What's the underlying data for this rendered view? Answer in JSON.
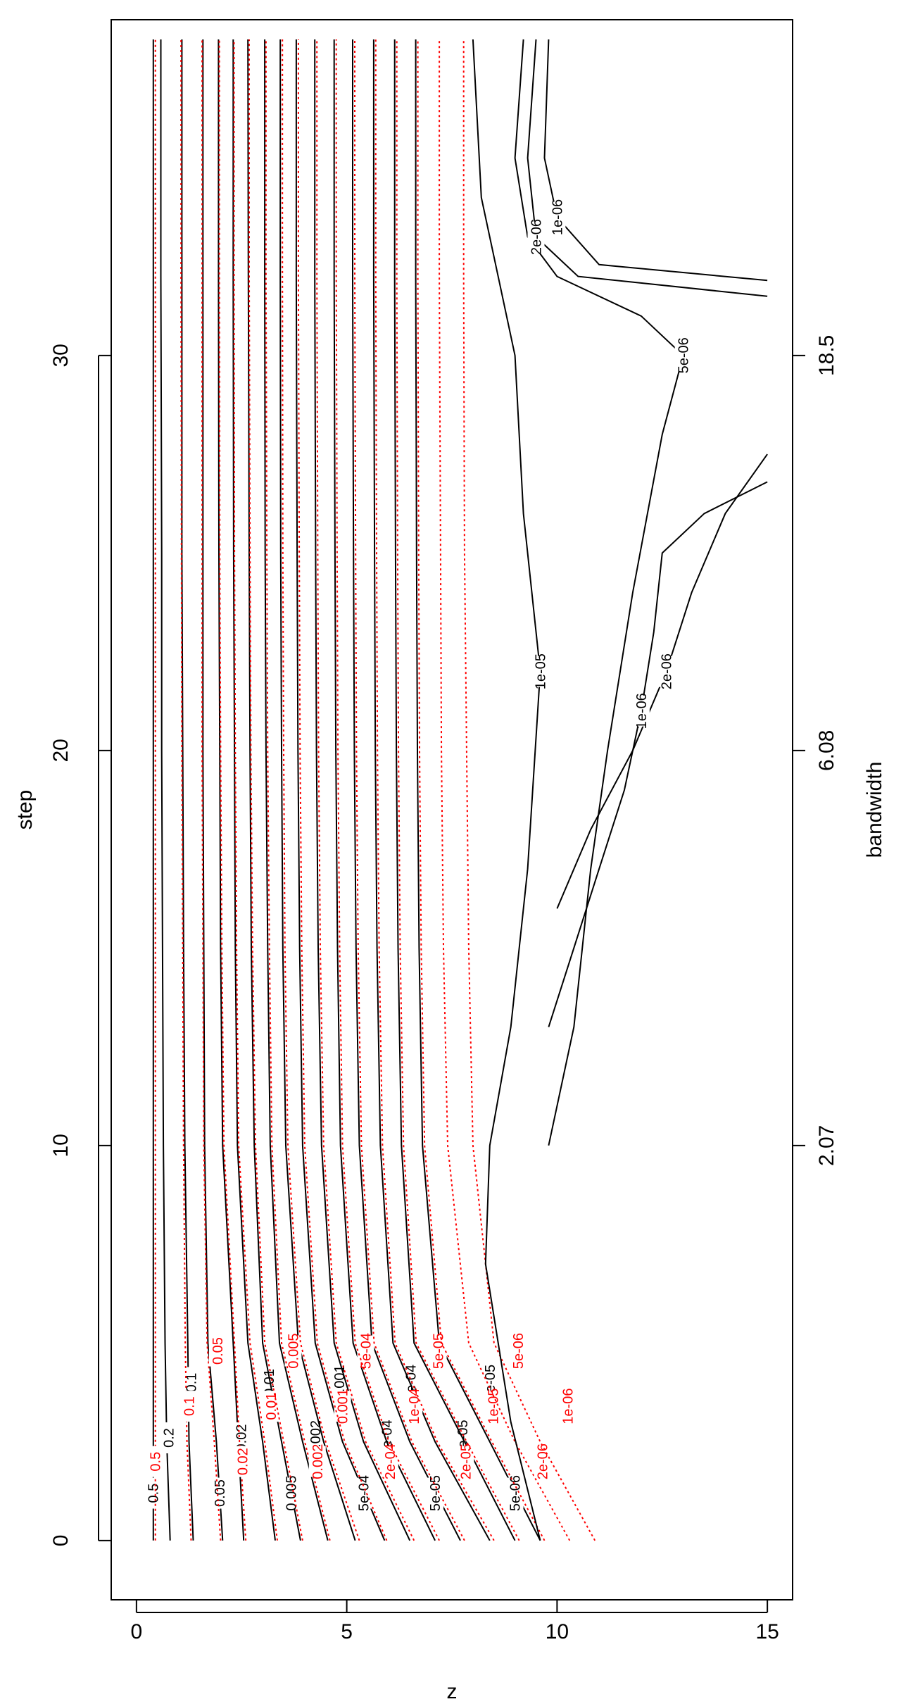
{
  "chart_data": {
    "type": "contour",
    "xlabel": "z",
    "ylabel": "step",
    "right_axis_label": "bandwidth",
    "xlim": [
      -0.6,
      15.6
    ],
    "ylim": [
      -1.5,
      38.5
    ],
    "x_ticks": [
      0,
      5,
      10,
      15
    ],
    "y_ticks": [
      0,
      10,
      20,
      30
    ],
    "right_ticks": [
      {
        "step": 10,
        "label": "2.07"
      },
      {
        "step": 20,
        "label": "6.08"
      },
      {
        "step": 30,
        "label": "18.5"
      }
    ],
    "colors": {
      "black": "#000000",
      "red": "#ff0000"
    },
    "series": [
      {
        "color": "black",
        "style": "solid",
        "levels": [
          {
            "label": "0.5",
            "x": [
              0.4,
              0.4,
              0.4,
              0.4,
              0.4,
              0.4,
              0.4,
              0.4,
              0.4
            ]
          },
          {
            "label": "0.2",
            "x": [
              0.8,
              0.72,
              0.68,
              0.64,
              0.62,
              0.6,
              0.6,
              0.58,
              0.58
            ]
          },
          {
            "label": "0.1",
            "x": [
              1.35,
              1.25,
              1.22,
              1.15,
              1.12,
              1.1,
              1.08,
              1.08,
              1.08
            ]
          },
          {
            "label": "0.05",
            "x": [
              2.05,
              1.9,
              1.7,
              1.62,
              1.6,
              1.58,
              1.58,
              1.58,
              1.58
            ]
          },
          {
            "label": "0.02",
            "x": [
              2.55,
              2.42,
              2.3,
              2.05,
              2.0,
              1.98,
              1.96,
              1.95,
              1.95
            ]
          },
          {
            "label": "0.01",
            "x": [
              3.3,
              3.0,
              2.65,
              2.4,
              2.35,
              2.33,
              2.31,
              2.3,
              2.3
            ]
          },
          {
            "label": "0.005",
            "x": [
              3.9,
              3.45,
              3.0,
              2.8,
              2.73,
              2.7,
              2.68,
              2.66,
              2.65
            ]
          },
          {
            "label": "0.002",
            "x": [
              4.55,
              3.95,
              3.4,
              3.18,
              3.12,
              3.08,
              3.06,
              3.05,
              3.05
            ]
          },
          {
            "label": "0.001",
            "x": [
              5.2,
              4.45,
              3.85,
              3.55,
              3.48,
              3.45,
              3.43,
              3.42,
              3.42
            ]
          },
          {
            "label": "5e-04",
            "x": [
              5.9,
              4.9,
              4.25,
              3.95,
              3.88,
              3.84,
              3.82,
              3.8,
              3.8
            ]
          },
          {
            "label": "2e-04",
            "x": [
              6.5,
              5.4,
              4.7,
              4.4,
              4.32,
              4.28,
              4.26,
              4.24,
              4.24
            ]
          },
          {
            "label": "1e-04",
            "x": [
              7.1,
              5.95,
              5.15,
              4.85,
              4.78,
              4.74,
              4.72,
              4.7,
              4.7
            ]
          },
          {
            "label": "5e-05",
            "x": [
              7.7,
              6.5,
              5.6,
              5.3,
              5.22,
              5.18,
              5.16,
              5.14,
              5.14
            ]
          },
          {
            "label": "2e-05",
            "x": [
              8.4,
              7.1,
              6.1,
              5.8,
              5.72,
              5.68,
              5.66,
              5.64,
              5.64
            ]
          },
          {
            "label": "1e-05",
            "x": [
              9.0,
              7.8,
              6.6,
              6.3,
              6.22,
              6.18,
              6.16,
              6.14,
              6.14
            ]
          },
          {
            "label": "5e-06",
            "x": [
              9.6,
              8.4,
              7.2,
              6.8,
              6.72,
              6.68,
              6.66,
              6.64,
              6.64
            ]
          }
        ]
      },
      {
        "color": "red",
        "style": "dotted",
        "levels": [
          {
            "label": "0.5",
            "x": [
              0.45,
              0.45,
              0.45,
              0.45,
              0.45,
              0.45,
              0.45,
              0.45,
              0.45
            ]
          },
          {
            "label": "0.1",
            "x": [
              1.3,
              1.2,
              1.16,
              1.12,
              1.1,
              1.08,
              1.07,
              1.06,
              1.06
            ]
          },
          {
            "label": "0.05",
            "x": [
              2.0,
              1.85,
              1.68,
              1.6,
              1.58,
              1.56,
              1.56,
              1.56,
              1.56
            ]
          },
          {
            "label": "0.02",
            "x": [
              2.6,
              2.45,
              2.33,
              2.08,
              2.03,
              2.0,
              1.98,
              1.97,
              1.97
            ]
          },
          {
            "label": "0.01",
            "x": [
              3.35,
              3.05,
              2.7,
              2.43,
              2.38,
              2.35,
              2.33,
              2.32,
              2.32
            ]
          },
          {
            "label": "0.005",
            "x": [
              3.95,
              3.5,
              3.05,
              2.83,
              2.76,
              2.72,
              2.7,
              2.68,
              2.68
            ]
          },
          {
            "label": "0.002",
            "x": [
              4.6,
              4.0,
              3.45,
              3.22,
              3.16,
              3.12,
              3.1,
              3.08,
              3.08
            ]
          },
          {
            "label": "0.001",
            "x": [
              5.3,
              4.5,
              3.9,
              3.6,
              3.53,
              3.5,
              3.48,
              3.47,
              3.47
            ]
          },
          {
            "label": "5e-04",
            "x": [
              5.95,
              4.95,
              4.3,
              4.0,
              3.93,
              3.89,
              3.87,
              3.85,
              3.85
            ]
          },
          {
            "label": "2e-04",
            "x": [
              6.6,
              5.45,
              4.75,
              4.45,
              4.37,
              4.33,
              4.31,
              4.29,
              4.29
            ]
          },
          {
            "label": "1e-04",
            "x": [
              7.2,
              6.0,
              5.2,
              4.9,
              4.83,
              4.79,
              4.77,
              4.75,
              4.75
            ]
          },
          {
            "label": "5e-05",
            "x": [
              7.8,
              6.55,
              5.65,
              5.35,
              5.27,
              5.23,
              5.21,
              5.19,
              5.19
            ]
          },
          {
            "label": "2e-05",
            "x": [
              8.5,
              7.15,
              6.15,
              5.85,
              5.77,
              5.73,
              5.71,
              5.69,
              5.69
            ]
          },
          {
            "label": "1e-05",
            "x": [
              9.1,
              7.85,
              6.65,
              6.35,
              6.27,
              6.23,
              6.21,
              6.19,
              6.19
            ]
          },
          {
            "label": "5e-06",
            "x": [
              9.7,
              8.45,
              7.25,
              6.85,
              6.77,
              6.73,
              6.71,
              6.69,
              6.69
            ]
          },
          {
            "label": "2e-06",
            "x": [
              10.3,
              9.0,
              7.9,
              7.4,
              7.3,
              7.25,
              7.23,
              7.2,
              7.2
            ]
          },
          {
            "label": "1e-06",
            "x": [
              10.9,
              9.6,
              8.5,
              8.0,
              7.9,
              7.85,
              7.8,
              7.78,
              7.78
            ]
          }
        ]
      }
    ],
    "level_steps": [
      0,
      2.5,
      5,
      10,
      15,
      20,
      25,
      32,
      38
    ],
    "outer_curves": [
      {
        "label": "1e-05",
        "color": "black",
        "points": [
          [
            9.6,
            0
          ],
          [
            8.9,
            3
          ],
          [
            8.3,
            7
          ],
          [
            8.4,
            10
          ],
          [
            8.9,
            13
          ],
          [
            9.3,
            17
          ],
          [
            9.6,
            22
          ],
          [
            9.2,
            26
          ],
          [
            9.0,
            30
          ],
          [
            8.6,
            32
          ],
          [
            8.2,
            34
          ],
          [
            8.0,
            38
          ]
        ]
      },
      {
        "label": "5e-06",
        "color": "black",
        "points": [
          [
            9.8,
            10
          ],
          [
            10.4,
            13
          ],
          [
            10.8,
            17
          ],
          [
            11.2,
            20
          ],
          [
            11.8,
            24
          ],
          [
            12.5,
            28
          ],
          [
            13.0,
            30
          ],
          [
            12.0,
            31
          ],
          [
            10.0,
            32
          ],
          [
            9.3,
            33
          ],
          [
            9.0,
            35
          ],
          [
            9.2,
            38
          ]
        ]
      },
      {
        "label": "2e-06",
        "color": "black",
        "points": [
          [
            9.5,
            38
          ],
          [
            9.3,
            35
          ],
          [
            9.5,
            33
          ],
          [
            10.5,
            32
          ],
          [
            15.0,
            31.5
          ]
        ]
      },
      {
        "label": "1e-06",
        "color": "black",
        "points": [
          [
            9.8,
            38
          ],
          [
            9.7,
            35
          ],
          [
            10.0,
            33.5
          ],
          [
            11.0,
            32.3
          ],
          [
            15.0,
            31.9
          ]
        ]
      },
      {
        "label": "2e-06",
        "color": "black",
        "points": [
          [
            10.0,
            16
          ],
          [
            10.8,
            18
          ],
          [
            11.8,
            20
          ],
          [
            12.6,
            22
          ],
          [
            13.2,
            24
          ],
          [
            14.0,
            26
          ],
          [
            15.0,
            27.5
          ]
        ]
      },
      {
        "label": "1e-06",
        "color": "black",
        "points": [
          [
            9.8,
            13
          ],
          [
            10.4,
            15
          ],
          [
            11.0,
            17
          ],
          [
            11.6,
            19
          ],
          [
            12.0,
            21
          ],
          [
            12.3,
            23
          ],
          [
            12.5,
            25
          ],
          [
            13.5,
            26
          ],
          [
            15.0,
            26.8
          ]
        ]
      }
    ]
  }
}
